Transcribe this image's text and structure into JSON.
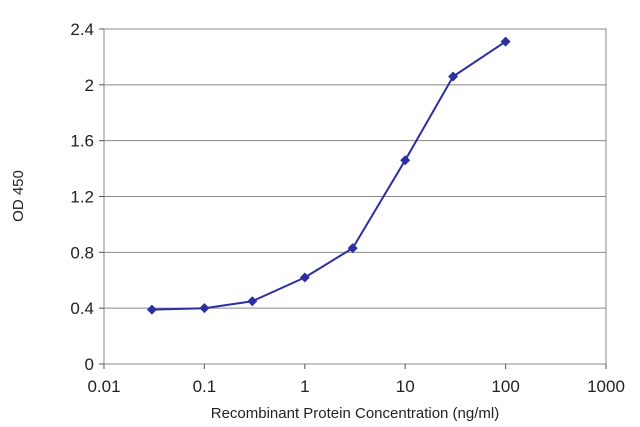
{
  "chart_data": {
    "type": "line",
    "title": "",
    "xlabel": "Recombinant Protein Concentration (ng/ml)",
    "ylabel": "OD 450",
    "x_scale": "log",
    "xlim": [
      0.01,
      1000
    ],
    "ylim": [
      0,
      2.4
    ],
    "x_ticks": [
      {
        "value": 0.01,
        "label": "0.01"
      },
      {
        "value": 0.1,
        "label": "0.1"
      },
      {
        "value": 1,
        "label": "1"
      },
      {
        "value": 10,
        "label": "10"
      },
      {
        "value": 100,
        "label": "100"
      },
      {
        "value": 1000,
        "label": "1000"
      }
    ],
    "y_ticks": [
      {
        "value": 0,
        "label": "0"
      },
      {
        "value": 0.4,
        "label": "0.4"
      },
      {
        "value": 0.8,
        "label": "0.8"
      },
      {
        "value": 1.2,
        "label": "1.2"
      },
      {
        "value": 1.6,
        "label": "1.6"
      },
      {
        "value": 2,
        "label": "2"
      },
      {
        "value": 2.4,
        "label": "2.4"
      }
    ],
    "grid": "horizontal",
    "legend": "none",
    "series": [
      {
        "color": "#2b2fa0",
        "x": [
          0.03,
          0.1,
          0.3,
          1,
          3,
          10,
          30,
          100
        ],
        "y": [
          0.39,
          0.4,
          0.45,
          0.62,
          0.83,
          1.46,
          2.06,
          2.31
        ]
      }
    ]
  }
}
